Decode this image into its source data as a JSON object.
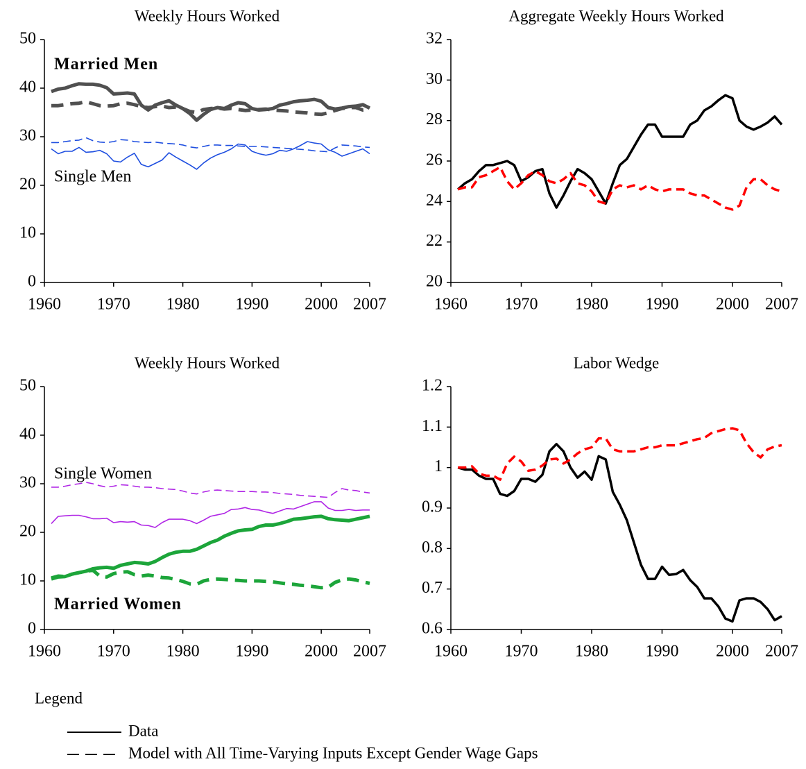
{
  "chart_data": [
    {
      "type": "line",
      "title": "Weekly Hours Worked",
      "x": [
        1961,
        1962,
        1963,
        1964,
        1965,
        1966,
        1967,
        1968,
        1969,
        1970,
        1971,
        1972,
        1973,
        1974,
        1975,
        1976,
        1977,
        1978,
        1979,
        1980,
        1981,
        1982,
        1983,
        1984,
        1985,
        1986,
        1987,
        1988,
        1989,
        1990,
        1991,
        1992,
        1993,
        1994,
        1995,
        1996,
        1997,
        1998,
        1999,
        2000,
        2001,
        2002,
        2003,
        2004,
        2005,
        2006,
        2007
      ],
      "xlim": [
        1960,
        2007
      ],
      "xticks": [
        1960,
        1970,
        1980,
        1990,
        2000,
        2007
      ],
      "ylim": [
        0,
        50
      ],
      "yticks": [
        0,
        10,
        20,
        30,
        40,
        50
      ],
      "annotations": [
        {
          "text": "Married Men",
          "color": "#505050"
        },
        {
          "text": "Single Men",
          "color": "#1f4fe0"
        }
      ],
      "series": [
        {
          "color": "#505050",
          "dashed": false,
          "values": [
            39.3,
            39.8,
            40,
            40.5,
            40.9,
            40.8,
            40.8,
            40.6,
            40.1,
            38.8,
            38.9,
            39.0,
            38.8,
            36.5,
            35.5,
            36.5,
            37.0,
            37.4,
            36.5,
            35.8,
            34.8,
            33.4,
            34.6,
            35.6,
            36.0,
            35.8,
            36.5,
            37.0,
            36.8,
            35.8,
            35.5,
            35.6,
            35.8,
            36.5,
            36.8,
            37.2,
            37.4,
            37.5,
            37.7,
            37.3,
            36.0,
            35.7,
            35.9,
            36.2,
            36.3,
            36.6,
            35.9
          ]
        },
        {
          "color": "#505050",
          "dashed": true,
          "values": [
            36.4,
            36.4,
            36.6,
            36.8,
            36.9,
            37.2,
            36.8,
            36.4,
            36.3,
            36.4,
            36.8,
            36.9,
            36.6,
            36.2,
            36.0,
            36.2,
            36.3,
            36.0,
            36.1,
            35.8,
            35.2,
            35.0,
            35.6,
            35.8,
            35.9,
            35.7,
            35.8,
            35.6,
            35.4,
            35.5,
            35.6,
            35.7,
            35.5,
            35.4,
            35.3,
            35.1,
            35.0,
            34.9,
            34.7,
            34.6,
            34.9,
            35.4,
            35.8,
            36.0,
            36.0,
            35.5,
            35.6
          ]
        },
        {
          "color": "#1f4fe0",
          "dashed": false,
          "values": [
            27.5,
            26.5,
            27.0,
            27.0,
            27.8,
            26.8,
            26.9,
            27.2,
            26.5,
            25.0,
            24.8,
            25.8,
            26.6,
            24.3,
            23.8,
            24.5,
            25.2,
            26.7,
            25.8,
            25.0,
            24.2,
            23.3,
            24.6,
            25.6,
            26.3,
            26.8,
            27.5,
            28.5,
            28.3,
            27.0,
            26.5,
            26.2,
            26.5,
            27.2,
            27.0,
            27.5,
            28.2,
            29.0,
            28.7,
            28.5,
            27.3,
            26.8,
            26.0,
            26.5,
            27.0,
            27.5,
            26.5
          ]
        },
        {
          "color": "#1f4fe0",
          "dashed": true,
          "values": [
            28.8,
            28.8,
            29.0,
            29.2,
            29.3,
            29.8,
            29.2,
            28.9,
            28.8,
            29.0,
            29.4,
            29.3,
            29.0,
            28.9,
            28.8,
            28.9,
            28.7,
            28.6,
            28.5,
            28.3,
            27.9,
            27.7,
            28.0,
            28.3,
            28.3,
            28.2,
            28.2,
            28.1,
            28.0,
            28.0,
            28.0,
            27.9,
            27.8,
            27.7,
            27.6,
            27.5,
            27.4,
            27.3,
            27.1,
            27.0,
            26.9,
            27.7,
            28.3,
            28.2,
            28.1,
            27.9,
            27.8
          ]
        }
      ]
    },
    {
      "type": "line",
      "title": "Aggregate Weekly Hours Worked",
      "x": [
        1961,
        1962,
        1963,
        1964,
        1965,
        1966,
        1967,
        1968,
        1969,
        1970,
        1971,
        1972,
        1973,
        1974,
        1975,
        1976,
        1977,
        1978,
        1979,
        1980,
        1981,
        1982,
        1983,
        1984,
        1985,
        1986,
        1987,
        1988,
        1989,
        1990,
        1991,
        1992,
        1993,
        1994,
        1995,
        1996,
        1997,
        1998,
        1999,
        2000,
        2001,
        2002,
        2003,
        2004,
        2005,
        2006,
        2007
      ],
      "xlim": [
        1960,
        2007
      ],
      "xticks": [
        1960,
        1970,
        1980,
        1990,
        2000,
        2007
      ],
      "ylim": [
        20,
        32
      ],
      "yticks": [
        20,
        22,
        24,
        26,
        28,
        30,
        32
      ],
      "series": [
        {
          "color": "#000000",
          "dashed": false,
          "values": [
            24.6,
            24.9,
            25.1,
            25.5,
            25.8,
            25.8,
            25.9,
            26.0,
            25.8,
            25.0,
            25.2,
            25.5,
            25.6,
            24.4,
            23.7,
            24.3,
            25.0,
            25.6,
            25.4,
            25.1,
            24.5,
            23.9,
            24.9,
            25.8,
            26.1,
            26.7,
            27.3,
            27.8,
            27.8,
            27.2,
            27.2,
            27.2,
            27.2,
            27.8,
            28.0,
            28.5,
            28.7,
            29.0,
            29.25,
            29.1,
            28.0,
            27.7,
            27.55,
            27.7,
            27.9,
            28.2,
            27.8
          ]
        },
        {
          "color": "#ff0000",
          "dashed": true,
          "values": [
            24.6,
            24.7,
            24.7,
            25.2,
            25.3,
            25.5,
            25.7,
            25.0,
            24.6,
            24.9,
            25.3,
            25.5,
            25.3,
            25.0,
            24.9,
            25.1,
            25.4,
            24.9,
            24.8,
            24.5,
            24.0,
            23.9,
            24.6,
            24.8,
            24.7,
            24.8,
            24.6,
            24.8,
            24.6,
            24.5,
            24.6,
            24.6,
            24.6,
            24.4,
            24.3,
            24.3,
            24.1,
            23.9,
            23.7,
            23.6,
            23.8,
            24.7,
            25.1,
            25.1,
            24.8,
            24.6,
            24.5
          ]
        }
      ]
    },
    {
      "type": "line",
      "title": "Weekly Hours Worked",
      "x": [
        1961,
        1962,
        1963,
        1964,
        1965,
        1966,
        1967,
        1968,
        1969,
        1970,
        1971,
        1972,
        1973,
        1974,
        1975,
        1976,
        1977,
        1978,
        1979,
        1980,
        1981,
        1982,
        1983,
        1984,
        1985,
        1986,
        1987,
        1988,
        1989,
        1990,
        1991,
        1992,
        1993,
        1994,
        1995,
        1996,
        1997,
        1998,
        1999,
        2000,
        2001,
        2002,
        2003,
        2004,
        2005,
        2006,
        2007
      ],
      "xlim": [
        1960,
        2007
      ],
      "xticks": [
        1960,
        1970,
        1980,
        1990,
        2000,
        2007
      ],
      "ylim": [
        0,
        50
      ],
      "yticks": [
        0,
        10,
        20,
        30,
        40,
        50
      ],
      "annotations": [
        {
          "text": "Single Women",
          "color": "#b026e6"
        },
        {
          "text": "Married Women",
          "color": "#1ca53a"
        }
      ],
      "series": [
        {
          "color": "#b026e6",
          "dashed": false,
          "values": [
            21.8,
            23.3,
            23.4,
            23.5,
            23.5,
            23.2,
            22.8,
            22.8,
            22.9,
            22.0,
            22.2,
            22.1,
            22.2,
            21.5,
            21.4,
            21.0,
            22.0,
            22.7,
            22.7,
            22.7,
            22.4,
            21.8,
            22.5,
            23.3,
            23.6,
            23.9,
            24.7,
            24.8,
            25.1,
            24.7,
            24.6,
            24.2,
            23.9,
            24.4,
            24.9,
            24.8,
            25.3,
            25.8,
            26.3,
            26.3,
            25.0,
            24.5,
            24.5,
            24.7,
            24.5,
            24.6,
            24.6
          ]
        },
        {
          "color": "#b026e6",
          "dashed": true,
          "values": [
            29.3,
            29.3,
            29.5,
            29.8,
            30.0,
            30.3,
            30.0,
            29.6,
            29.3,
            29.5,
            29.8,
            29.7,
            29.5,
            29.3,
            29.3,
            29.2,
            29.0,
            28.9,
            28.8,
            28.5,
            28.1,
            27.9,
            28.3,
            28.6,
            28.7,
            28.6,
            28.5,
            28.4,
            28.4,
            28.4,
            28.3,
            28.3,
            28.2,
            28.0,
            27.9,
            27.8,
            27.6,
            27.5,
            27.4,
            27.3,
            27.2,
            28.2,
            29.0,
            28.7,
            28.6,
            28.3,
            28.1
          ]
        },
        {
          "color": "#1ca53a",
          "dashed": false,
          "values": [
            10.4,
            10.8,
            10.9,
            11.4,
            11.7,
            12.0,
            12.5,
            12.7,
            12.8,
            12.6,
            13.2,
            13.5,
            13.8,
            13.7,
            13.5,
            14.0,
            14.8,
            15.5,
            15.9,
            16.1,
            16.1,
            16.5,
            17.2,
            17.9,
            18.4,
            19.2,
            19.8,
            20.3,
            20.5,
            20.6,
            21.2,
            21.5,
            21.5,
            21.8,
            22.2,
            22.7,
            22.8,
            23.0,
            23.2,
            23.3,
            22.8,
            22.6,
            22.5,
            22.4,
            22.7,
            23.0,
            23.3
          ]
        },
        {
          "color": "#1ca53a",
          "dashed": true,
          "values": [
            10.6,
            11.0,
            10.9,
            11.4,
            11.7,
            12.0,
            12.2,
            11.0,
            10.8,
            11.5,
            11.8,
            11.9,
            11.3,
            11.0,
            11.2,
            11.0,
            10.7,
            10.6,
            10.3,
            9.9,
            9.4,
            9.3,
            10.0,
            10.3,
            10.4,
            10.3,
            10.2,
            10.1,
            10.0,
            10.0,
            10.0,
            9.9,
            9.8,
            9.6,
            9.4,
            9.3,
            9.1,
            9.0,
            8.8,
            8.6,
            8.7,
            9.7,
            10.2,
            10.4,
            10.2,
            9.8,
            9.5
          ]
        }
      ]
    },
    {
      "type": "line",
      "title": "Labor Wedge",
      "x": [
        1961,
        1962,
        1963,
        1964,
        1965,
        1966,
        1967,
        1968,
        1969,
        1970,
        1971,
        1972,
        1973,
        1974,
        1975,
        1976,
        1977,
        1978,
        1979,
        1980,
        1981,
        1982,
        1983,
        1984,
        1985,
        1986,
        1987,
        1988,
        1989,
        1990,
        1991,
        1992,
        1993,
        1994,
        1995,
        1996,
        1997,
        1998,
        1999,
        2000,
        2001,
        2002,
        2003,
        2004,
        2005,
        2006,
        2007
      ],
      "xlim": [
        1960,
        2007
      ],
      "xticks": [
        1960,
        1970,
        1980,
        1990,
        2000,
        2007
      ],
      "ylim": [
        0.6,
        1.2
      ],
      "yticks": [
        0.6,
        0.7,
        0.8,
        0.9,
        1,
        1.1,
        1.2
      ],
      "series": [
        {
          "color": "#000000",
          "dashed": false,
          "values": [
            1.0,
            0.995,
            0.995,
            0.98,
            0.972,
            0.972,
            0.935,
            0.93,
            0.942,
            0.972,
            0.972,
            0.965,
            0.982,
            1.04,
            1.058,
            1.04,
            1.0,
            0.975,
            0.99,
            0.97,
            1.028,
            1.02,
            0.94,
            0.908,
            0.87,
            0.815,
            0.76,
            0.725,
            0.725,
            0.755,
            0.735,
            0.737,
            0.747,
            0.722,
            0.705,
            0.677,
            0.677,
            0.657,
            0.627,
            0.62,
            0.672,
            0.677,
            0.677,
            0.668,
            0.65,
            0.623,
            0.633
          ]
        },
        {
          "color": "#ff0000",
          "dashed": true,
          "values": [
            1.0,
            1.0,
            1.003,
            0.985,
            0.98,
            0.98,
            0.97,
            1.01,
            1.027,
            1.015,
            0.992,
            0.995,
            1.005,
            1.02,
            1.022,
            1.01,
            1.02,
            1.035,
            1.045,
            1.05,
            1.072,
            1.072,
            1.045,
            1.04,
            1.04,
            1.04,
            1.045,
            1.05,
            1.05,
            1.055,
            1.055,
            1.055,
            1.06,
            1.065,
            1.07,
            1.073,
            1.085,
            1.09,
            1.095,
            1.097,
            1.092,
            1.06,
            1.038,
            1.025,
            1.045,
            1.052,
            1.055
          ]
        }
      ]
    }
  ],
  "legend": {
    "title": "Legend",
    "entries": [
      {
        "label": "Data",
        "dashed": false
      },
      {
        "label": "Model with All Time-Varying Inputs Except Gender Wage Gaps",
        "dashed": true
      }
    ]
  }
}
